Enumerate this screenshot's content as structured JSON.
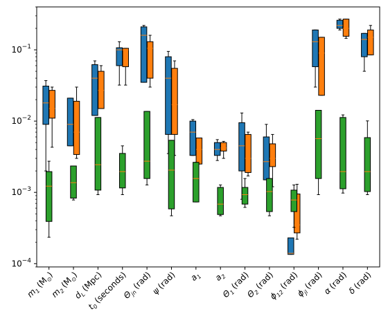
{
  "chart_data": {
    "type": "box",
    "yscale": "log",
    "ylim": [
      9e-05,
      0.4
    ],
    "y_ticks": [
      {
        "value": 0.0001,
        "base": "10",
        "exp": "−4"
      },
      {
        "value": 0.001,
        "base": "10",
        "exp": "−3"
      },
      {
        "value": 0.01,
        "base": "10",
        "exp": "−2"
      },
      {
        "value": 0.1,
        "base": "10",
        "exp": "−1"
      }
    ],
    "categories": [
      {
        "sym": "m",
        "sub": "1",
        "unit": "(M",
        "unit_sub": "⊙",
        "unit_end": ")"
      },
      {
        "sym": "m",
        "sub": "2",
        "unit": "(M",
        "unit_sub": "⊙",
        "unit_end": ")"
      },
      {
        "sym": "d",
        "sub": "L",
        "unit": "(Mpc)",
        "unit_sub": "",
        "unit_end": ""
      },
      {
        "sym": "t",
        "sub": "0",
        "unit": "(seconds)",
        "unit_sub": "",
        "unit_end": ""
      },
      {
        "sym": "Θ",
        "sub": "jn",
        "unit": "(rad)",
        "unit_sub": "",
        "unit_end": ""
      },
      {
        "sym": "ψ",
        "sub": "",
        "unit": "(rad)",
        "unit_sub": "",
        "unit_end": ""
      },
      {
        "sym": "a",
        "sub": "1",
        "unit": "",
        "unit_sub": "",
        "unit_end": ""
      },
      {
        "sym": "a",
        "sub": "2",
        "unit": "",
        "unit_sub": "",
        "unit_end": ""
      },
      {
        "sym": "Θ",
        "sub": "1",
        "unit": "(rad)",
        "unit_sub": "",
        "unit_end": ""
      },
      {
        "sym": "Θ",
        "sub": "2",
        "unit": "(rad)",
        "unit_sub": "",
        "unit_end": ""
      },
      {
        "sym": "ϕ",
        "sub": "12",
        "unit": "(rad)",
        "unit_sub": "",
        "unit_end": ""
      },
      {
        "sym": "ϕ",
        "sub": "jl",
        "unit": "(rad)",
        "unit_sub": "",
        "unit_end": ""
      },
      {
        "sym": "α",
        "sub": "",
        "unit": "(rad)",
        "unit_sub": "",
        "unit_end": ""
      },
      {
        "sym": "δ",
        "sub": "",
        "unit": "(rad)",
        "unit_sub": "",
        "unit_end": ""
      }
    ],
    "series": [
      {
        "color": "#1f77b4",
        "boxes": [
          [
            0.002,
            0.009,
            0.018,
            0.031,
            0.037
          ],
          [
            0.0045,
            0.0045,
            0.009,
            0.021,
            0.021
          ],
          [
            0.012,
            0.012,
            0.04,
            0.062,
            0.07
          ],
          [
            0.032,
            0.06,
            0.1,
            0.107,
            0.13
          ],
          [
            0.035,
            0.035,
            0.16,
            0.21,
            0.22
          ],
          [
            0.0035,
            0.0065,
            0.04,
            0.08,
            0.095
          ],
          [
            0.0033,
            0.0033,
            0.007,
            0.01,
            0.0105
          ],
          [
            0.0028,
            0.0033,
            0.004,
            0.005,
            0.0055
          ],
          [
            0.0008,
            0.002,
            0.0045,
            0.0095,
            0.013
          ],
          [
            0.0015,
            0.0015,
            0.0027,
            0.006,
            0.009
          ],
          [
            0.000135,
            0.000135,
            0.00014,
            0.00023,
            0.00023
          ],
          [
            0.03,
            0.058,
            0.13,
            0.19,
            0.19
          ],
          [
            0.19,
            0.2,
            0.22,
            0.26,
            0.27
          ],
          [
            0.05,
            0.08,
            0.14,
            0.17,
            0.17
          ]
        ]
      },
      {
        "color": "#ff7f0e",
        "boxes": [
          [
            0.0043,
            0.011,
            0.015,
            0.027,
            0.03
          ],
          [
            0.003,
            0.0034,
            0.007,
            0.019,
            0.03
          ],
          [
            0.015,
            0.015,
            0.027,
            0.05,
            0.06
          ],
          [
            0.032,
            0.058,
            0.1,
            0.105,
            0.105
          ],
          [
            0.03,
            0.04,
            0.105,
            0.13,
            0.16
          ],
          [
            0.0033,
            0.0065,
            0.017,
            0.055,
            0.07
          ],
          [
            0.0025,
            0.0025,
            0.004,
            0.0058,
            0.0058
          ],
          [
            0.003,
            0.0038,
            0.0042,
            0.005,
            0.0052
          ],
          [
            0.0017,
            0.0019,
            0.003,
            0.0065,
            0.007
          ],
          [
            0.0012,
            0.0023,
            0.003,
            0.0048,
            0.0065
          ],
          [
            0.00022,
            0.00027,
            0.00035,
            0.00095,
            0.0013
          ],
          [
            0.023,
            0.023,
            0.09,
            0.15,
            0.15
          ],
          [
            0.145,
            0.155,
            0.2,
            0.27,
            0.27
          ],
          [
            0.085,
            0.085,
            0.15,
            0.19,
            0.22
          ]
        ]
      },
      {
        "color": "#2ca02c",
        "boxes": [
          [
            0.00024,
            0.0004,
            0.00125,
            0.002,
            0.0028
          ],
          [
            0.0008,
            0.00085,
            0.0014,
            0.0024,
            0.0024
          ],
          [
            0.00095,
            0.0011,
            0.0025,
            0.0115,
            0.0115
          ],
          [
            0.00095,
            0.00118,
            0.002,
            0.0036,
            0.0046
          ],
          [
            0.0013,
            0.0016,
            0.0028,
            0.014,
            0.014
          ],
          [
            0.00048,
            0.0006,
            0.0021,
            0.0055,
            0.0055
          ],
          [
            0.00075,
            0.00075,
            0.0016,
            0.0027,
            0.0027
          ],
          [
            0.00048,
            0.0005,
            0.0007,
            0.0012,
            0.0013
          ],
          [
            0.00063,
            0.0007,
            0.00095,
            0.0012,
            0.0016
          ],
          [
            0.00048,
            0.00055,
            0.00105,
            0.0016,
            0.0016
          ],
          [
            0.00033,
            0.00055,
            0.0008,
            0.0011,
            0.0013
          ],
          [
            0.00095,
            0.0016,
            0.0058,
            0.0145,
            0.0145
          ],
          [
            0.001,
            0.00115,
            0.002,
            0.0115,
            0.0125
          ],
          [
            0.00095,
            0.00105,
            0.002,
            0.006,
            0.0103
          ]
        ]
      }
    ]
  }
}
